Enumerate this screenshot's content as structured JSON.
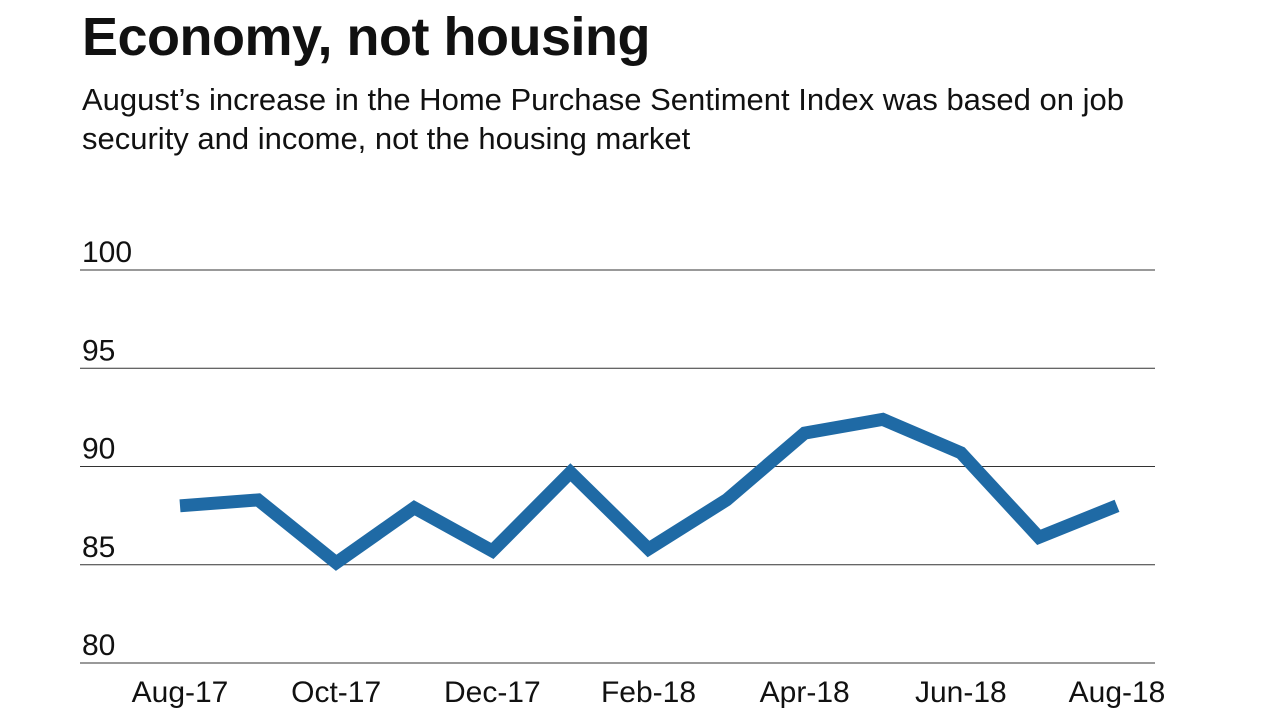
{
  "chart_data": {
    "type": "line",
    "title": "Economy, not housing",
    "subtitle": "August’s increase in the Home Purchase Sentiment Index was based on job security and income, not the housing market",
    "xlabel": "",
    "ylabel": "",
    "x": [
      "Aug-17",
      "Sep-17",
      "Oct-17",
      "Nov-17",
      "Dec-17",
      "Jan-18",
      "Feb-18",
      "Mar-18",
      "Apr-18",
      "May-18",
      "Jun-18",
      "Jul-18",
      "Aug-18"
    ],
    "x_tick_labels": [
      "Aug-17",
      "Oct-17",
      "Dec-17",
      "Feb-18",
      "Apr-18",
      "Jun-18",
      "Aug-18"
    ],
    "series": [
      {
        "values": [
          88.0,
          88.3,
          85.1,
          87.9,
          85.7,
          89.7,
          85.8,
          88.3,
          91.7,
          92.4,
          90.7,
          86.4,
          88.0
        ],
        "color": "#1f6aa5"
      }
    ],
    "y_ticks": [
      80,
      85,
      90,
      95,
      100
    ],
    "ylim": [
      80,
      100
    ],
    "grid": "horizontal",
    "legend": "none"
  }
}
